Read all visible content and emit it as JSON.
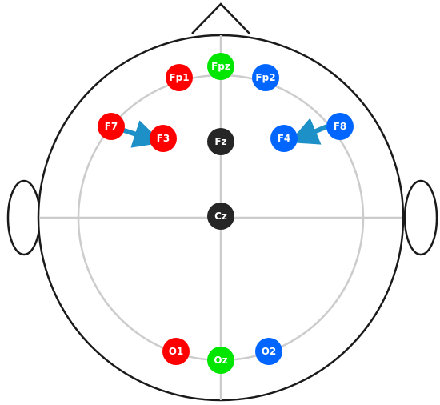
{
  "colors": {
    "head_outline": "#1a1a1a",
    "grid": "#cccccc",
    "red": "#ff0000",
    "green": "#00e600",
    "blue": "#0066ff",
    "dark": "#262626",
    "arrow": "#1e90c8"
  },
  "electrodes": [
    {
      "id": "fpz",
      "label": "Fpz",
      "color": "green"
    },
    {
      "id": "fp1",
      "label": "Fp1",
      "color": "red"
    },
    {
      "id": "fp2",
      "label": "Fp2",
      "color": "blue"
    },
    {
      "id": "f7",
      "label": "F7",
      "color": "red"
    },
    {
      "id": "f3",
      "label": "F3",
      "color": "red"
    },
    {
      "id": "fz",
      "label": "Fz",
      "color": "dark"
    },
    {
      "id": "f4",
      "label": "F4",
      "color": "blue"
    },
    {
      "id": "f8",
      "label": "F8",
      "color": "blue"
    },
    {
      "id": "cz",
      "label": "Cz",
      "color": "dark"
    },
    {
      "id": "o1",
      "label": "O1",
      "color": "red"
    },
    {
      "id": "oz",
      "label": "Oz",
      "color": "green"
    },
    {
      "id": "o2",
      "label": "O2",
      "color": "blue"
    }
  ],
  "arrows": [
    {
      "from": "F7",
      "to": "F3"
    },
    {
      "from": "F8",
      "to": "F4"
    }
  ]
}
